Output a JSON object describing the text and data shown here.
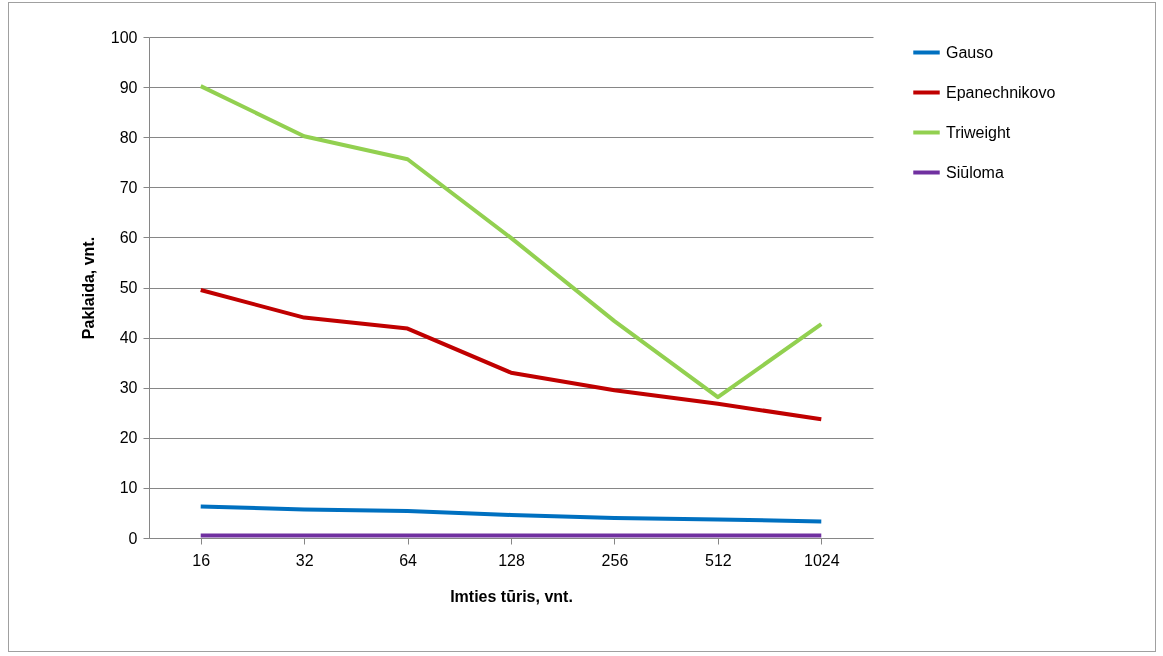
{
  "chart_data": {
    "type": "line",
    "xlabel": "Imties tūris, vnt.",
    "ylabel": "Paklaida, vnt.",
    "categories": [
      "16",
      "32",
      "64",
      "128",
      "256",
      "512",
      "1024"
    ],
    "series": [
      {
        "name": "Gauso",
        "color": "#0070c0",
        "values": [
          6.3,
          5.7,
          5.4,
          4.6,
          4.0,
          3.7,
          3.3
        ]
      },
      {
        "name": "Epanechnikovo",
        "color": "#c00000",
        "values": [
          49.5,
          44.0,
          41.8,
          33.0,
          29.5,
          26.8,
          23.7
        ]
      },
      {
        "name": "Triweight",
        "color": "#92d050",
        "values": [
          90.2,
          80.2,
          75.6,
          59.9,
          43.3,
          28.1,
          42.7
        ]
      },
      {
        "name": "Siūloma",
        "color": "#7030a0",
        "values": [
          0.5,
          0.5,
          0.5,
          0.5,
          0.5,
          0.5,
          0.5
        ]
      }
    ],
    "ylim": [
      0,
      100
    ],
    "yticks": [
      0,
      10,
      20,
      30,
      40,
      50,
      60,
      70,
      80,
      90,
      100
    ],
    "grid": "y",
    "legend": "right"
  }
}
